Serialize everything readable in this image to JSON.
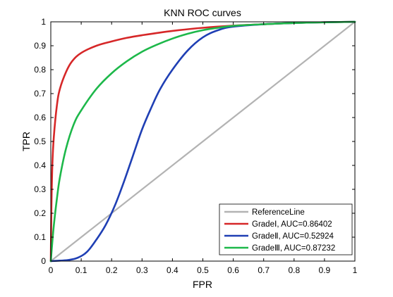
{
  "chart_data": {
    "type": "line",
    "title": "KNN ROC curves",
    "xlabel": "FPR",
    "ylabel": "TPR",
    "xlim": [
      0,
      1
    ],
    "ylim": [
      0,
      1
    ],
    "xticks": [
      "0",
      "0.1",
      "0.2",
      "0.3",
      "0.4",
      "0.5",
      "0.6",
      "0.7",
      "0.8",
      "0.9",
      "1"
    ],
    "yticks": [
      "0",
      "0.1",
      "0.2",
      "0.3",
      "0.4",
      "0.5",
      "0.6",
      "0.7",
      "0.8",
      "0.9",
      "1"
    ],
    "grid": false,
    "legend_position": "bottom-right",
    "series": [
      {
        "name": "ReferenceLine",
        "color": "#b3b3b3",
        "x": [
          0,
          1
        ],
        "y": [
          0,
          1
        ]
      },
      {
        "name": "GradeⅠ, AUC=0.86402",
        "color": "#d62728",
        "x": [
          0,
          0.002,
          0.005,
          0.01,
          0.02,
          0.03,
          0.05,
          0.07,
          0.1,
          0.15,
          0.2,
          0.25,
          0.3,
          0.4,
          0.5,
          0.6,
          0.7,
          0.8,
          0.9,
          1.0
        ],
        "y": [
          0,
          0.22,
          0.4,
          0.52,
          0.65,
          0.72,
          0.79,
          0.835,
          0.87,
          0.9,
          0.918,
          0.933,
          0.944,
          0.962,
          0.975,
          0.984,
          0.99,
          0.995,
          0.998,
          1.0
        ]
      },
      {
        "name": "GradeⅡ, AUC=0.52924",
        "color": "#1f3fb4",
        "x": [
          0,
          0.03,
          0.06,
          0.09,
          0.12,
          0.15,
          0.18,
          0.21,
          0.24,
          0.27,
          0.3,
          0.33,
          0.36,
          0.4,
          0.45,
          0.5,
          0.55,
          0.6,
          0.7,
          0.8,
          0.9,
          1.0
        ],
        "y": [
          0,
          0.002,
          0.005,
          0.015,
          0.04,
          0.09,
          0.15,
          0.23,
          0.33,
          0.44,
          0.55,
          0.64,
          0.72,
          0.8,
          0.88,
          0.935,
          0.965,
          0.98,
          0.99,
          0.995,
          0.998,
          1.0
        ]
      },
      {
        "name": "GradeⅢ, AUC=0.87232",
        "color": "#1db84a",
        "x": [
          0,
          0.005,
          0.01,
          0.02,
          0.03,
          0.05,
          0.075,
          0.1,
          0.15,
          0.2,
          0.25,
          0.3,
          0.35,
          0.4,
          0.45,
          0.5,
          0.55,
          0.6,
          0.7,
          0.8,
          0.9,
          1.0
        ],
        "y": [
          0,
          0.08,
          0.15,
          0.26,
          0.35,
          0.47,
          0.57,
          0.63,
          0.72,
          0.785,
          0.835,
          0.875,
          0.905,
          0.93,
          0.95,
          0.965,
          0.975,
          0.983,
          0.99,
          0.995,
          0.998,
          1.0
        ]
      }
    ]
  }
}
